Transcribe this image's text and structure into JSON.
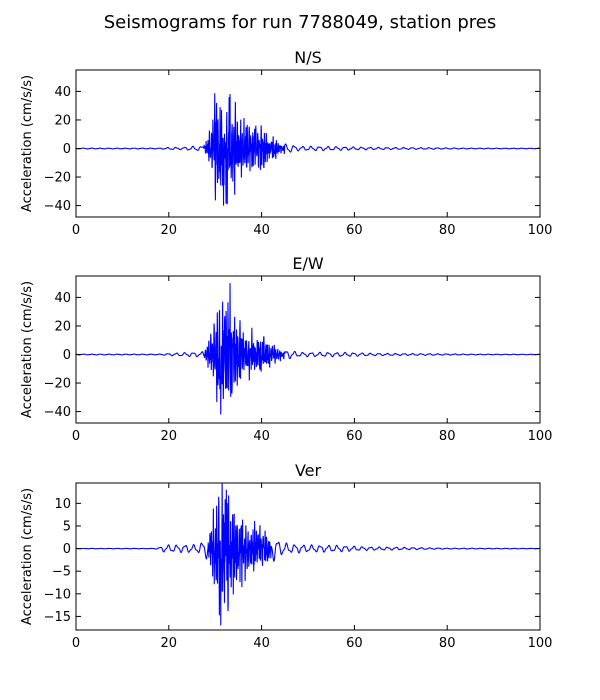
{
  "figure": {
    "title": "Seismograms for run 7788049, station pres"
  },
  "chart_data": [
    {
      "type": "line",
      "title": "N/S",
      "xlabel": "",
      "ylabel": "Acceleration (cm/s/s)",
      "xlim": [
        0,
        100
      ],
      "ylim": [
        -48,
        55
      ],
      "xticks": [
        0,
        20,
        40,
        60,
        80,
        100
      ],
      "yticks": [
        -40,
        -20,
        0,
        20,
        40
      ],
      "color": "#0000ff",
      "grid": false,
      "series_description": "Ground acceleration trace; near zero until ~28 s, strong shaking ~29-40 s (peaks about +36 and -40), decaying coda to ~48 s, small oscillations afterwards.",
      "envelope": [
        [
          0,
          0.3
        ],
        [
          18,
          0.3
        ],
        [
          20,
          0.8
        ],
        [
          23,
          0.8
        ],
        [
          25,
          1.5
        ],
        [
          27,
          1.5
        ],
        [
          28,
          4
        ],
        [
          29,
          12
        ],
        [
          30,
          32
        ],
        [
          31,
          31
        ],
        [
          32,
          28
        ],
        [
          33,
          36
        ],
        [
          34,
          28
        ],
        [
          35,
          22
        ],
        [
          36,
          18
        ],
        [
          37,
          15
        ],
        [
          38,
          14
        ],
        [
          39,
          15
        ],
        [
          40,
          13
        ],
        [
          41,
          12
        ],
        [
          42,
          8
        ],
        [
          43,
          6
        ],
        [
          44,
          4
        ],
        [
          45,
          3
        ],
        [
          46,
          3
        ],
        [
          48,
          1.5
        ],
        [
          52,
          1.5
        ],
        [
          58,
          1.2
        ],
        [
          65,
          0.8
        ],
        [
          75,
          0.6
        ],
        [
          85,
          0.3
        ],
        [
          100,
          0.2
        ]
      ],
      "peaks": [
        [
          30.3,
          32
        ],
        [
          31.8,
          -40
        ],
        [
          33.0,
          36
        ],
        [
          32.6,
          -39
        ]
      ]
    },
    {
      "type": "line",
      "title": "E/W",
      "xlabel": "",
      "ylabel": "Acceleration (cm/s/s)",
      "xlim": [
        0,
        100
      ],
      "ylim": [
        -48,
        55
      ],
      "xticks": [
        0,
        20,
        40,
        60,
        80,
        100
      ],
      "yticks": [
        -40,
        -20,
        0,
        20,
        40
      ],
      "color": "#0000ff",
      "grid": false,
      "series_description": "Ground acceleration trace; strong shaking ~29-40 s with peak about +50 near 33 s and minimum about -42 near 31 s, decaying coda to ~48 s.",
      "envelope": [
        [
          0,
          0.3
        ],
        [
          18,
          0.3
        ],
        [
          20,
          0.8
        ],
        [
          25,
          1.5
        ],
        [
          27,
          1.5
        ],
        [
          28,
          4
        ],
        [
          29,
          12
        ],
        [
          30,
          24
        ],
        [
          31,
          38
        ],
        [
          32,
          37
        ],
        [
          33,
          35
        ],
        [
          34,
          24
        ],
        [
          35,
          20
        ],
        [
          36,
          16
        ],
        [
          37,
          14
        ],
        [
          38,
          14
        ],
        [
          39,
          12
        ],
        [
          40,
          12
        ],
        [
          41,
          10
        ],
        [
          42,
          8
        ],
        [
          43,
          6
        ],
        [
          44,
          4
        ],
        [
          45,
          3
        ],
        [
          46,
          3
        ],
        [
          48,
          1.5
        ],
        [
          52,
          1.5
        ],
        [
          58,
          1.4
        ],
        [
          65,
          0.8
        ],
        [
          75,
          0.6
        ],
        [
          85,
          0.3
        ],
        [
          100,
          0.2
        ]
      ],
      "peaks": [
        [
          33.2,
          50
        ],
        [
          31.2,
          -42
        ],
        [
          31.6,
          37
        ]
      ]
    },
    {
      "type": "line",
      "title": "Ver",
      "xlabel": "",
      "ylabel": "Acceleration (cm/s/s)",
      "xlim": [
        0,
        100
      ],
      "ylim": [
        -18,
        14.5
      ],
      "xticks": [
        0,
        20,
        40,
        60,
        80,
        100
      ],
      "yticks": [
        -15,
        -10,
        -5,
        0,
        5,
        10
      ],
      "color": "#0000ff",
      "grid": false,
      "series_description": "Vertical acceleration trace; small precursors ~19-28 s, strong shaking ~29-40 s with peaks about +13 and -17, decaying coda to ~48 s.",
      "envelope": [
        [
          0,
          0.05
        ],
        [
          17,
          0.05
        ],
        [
          18,
          0.3
        ],
        [
          19,
          0.8
        ],
        [
          20,
          0.8
        ],
        [
          22,
          0.8
        ],
        [
          24,
          0.9
        ],
        [
          26,
          0.8
        ],
        [
          28,
          2
        ],
        [
          29,
          4
        ],
        [
          30,
          9
        ],
        [
          31,
          12
        ],
        [
          32,
          13
        ],
        [
          33,
          12
        ],
        [
          34,
          9
        ],
        [
          35,
          8
        ],
        [
          36,
          7
        ],
        [
          37,
          5
        ],
        [
          38,
          5
        ],
        [
          39,
          6
        ],
        [
          40,
          4
        ],
        [
          41,
          4
        ],
        [
          42,
          3
        ],
        [
          43,
          2.5
        ],
        [
          44,
          1.5
        ],
        [
          46,
          1
        ],
        [
          50,
          0.8
        ],
        [
          57,
          0.7
        ],
        [
          62,
          0.4
        ],
        [
          70,
          0.3
        ],
        [
          80,
          0.1
        ],
        [
          100,
          0.05
        ]
      ],
      "peaks": [
        [
          31.2,
          -17
        ],
        [
          32.4,
          13
        ],
        [
          32.0,
          -12
        ]
      ]
    }
  ]
}
